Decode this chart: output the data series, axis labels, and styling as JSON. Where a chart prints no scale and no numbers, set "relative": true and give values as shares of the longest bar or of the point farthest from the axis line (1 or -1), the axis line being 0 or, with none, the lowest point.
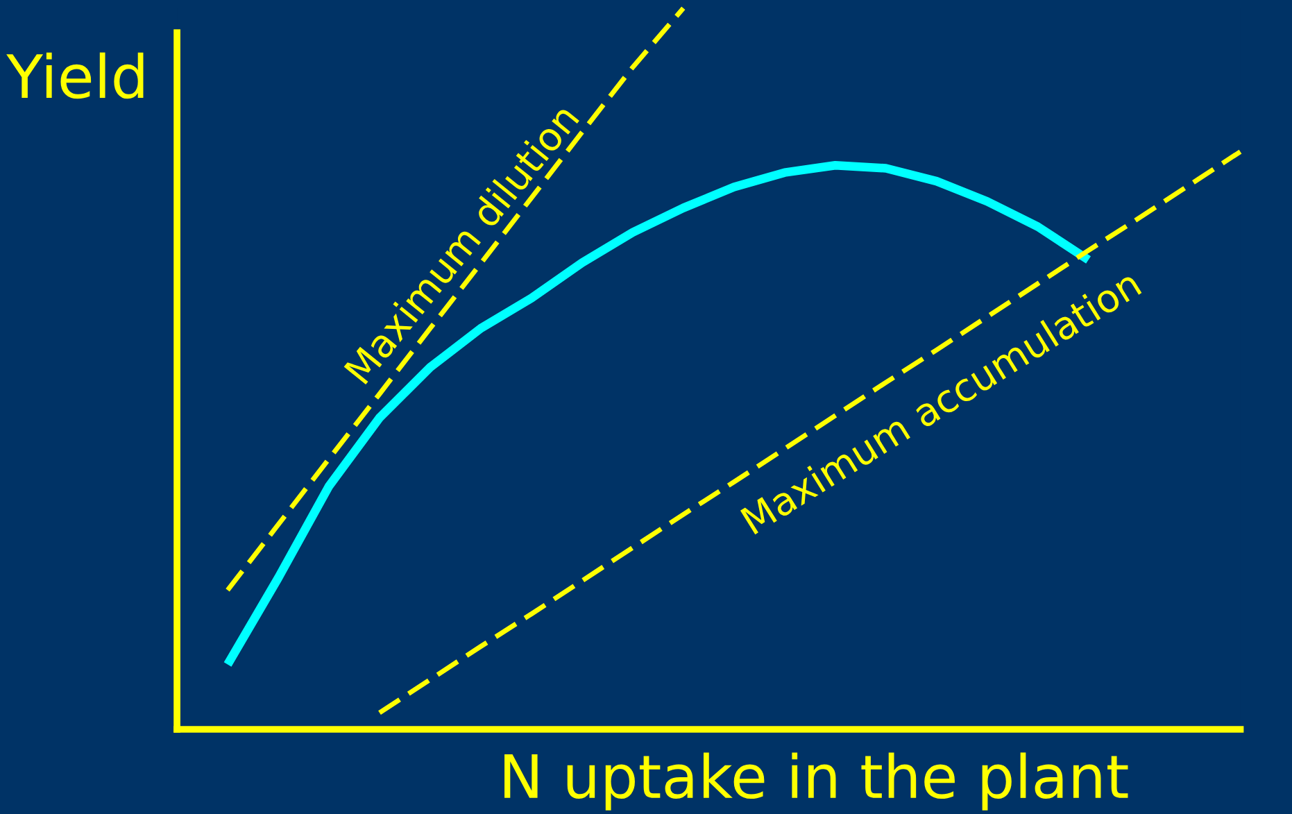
{
  "chart_data": {
    "type": "line",
    "relative": true,
    "xlabel": "N uptake in the plant",
    "ylabel": "Yield",
    "legend": false,
    "marker": "none",
    "categories": [
      null,
      null,
      null,
      null,
      null,
      null,
      null,
      null,
      null,
      null,
      null,
      null,
      null,
      null,
      null,
      null,
      null,
      null,
      null,
      null,
      null
    ],
    "series": [
      {
        "color": "#00ffff",
        "line_style": "solid",
        "values": [
          0.09,
          0.21,
          0.337,
          0.432,
          0.502,
          0.556,
          0.598,
          0.647,
          0.689,
          0.723,
          0.752,
          0.772,
          0.782,
          0.778,
          0.76,
          0.732,
          0.697,
          0.651,
          null,
          null,
          null
        ]
      },
      {
        "name": "Maximum dilution",
        "color": "#ffff00",
        "line_style": "dashed",
        "values": [
          0.193,
          0.284,
          0.375,
          0.465,
          0.556,
          0.646,
          0.737,
          0.828,
          0.918,
          1.0,
          null,
          null,
          null,
          null,
          null,
          null,
          null,
          null,
          null,
          null,
          null
        ]
      },
      {
        "name": "Maximum accumulation",
        "color": "#ffff00",
        "line_style": "dashed",
        "values": [
          null,
          null,
          null,
          0.023,
          0.069,
          0.115,
          0.16,
          0.206,
          0.252,
          0.298,
          0.343,
          0.389,
          0.435,
          0.481,
          0.526,
          0.572,
          0.618,
          0.664,
          0.709,
          0.755,
          0.801
        ]
      }
    ]
  }
}
